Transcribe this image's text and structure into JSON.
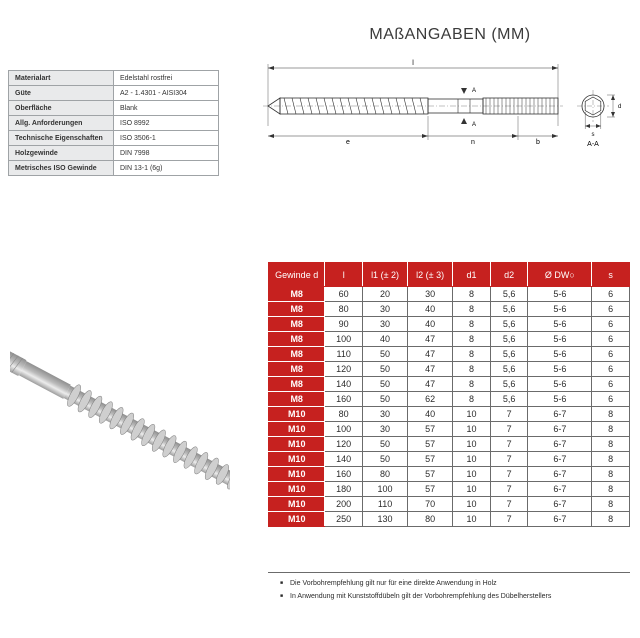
{
  "title": "MAßANGABEN (MM)",
  "spec": {
    "rows": [
      {
        "label": "Materialart",
        "value": "Edelstahl rostfrei"
      },
      {
        "label": "Güte",
        "value": "A2 - 1.4301 - AISI304"
      },
      {
        "label": "Oberfläche",
        "value": "Blank"
      },
      {
        "label": "Allg. Anforderungen",
        "value": "ISO 8992"
      },
      {
        "label": "Technische Eigenschaften",
        "value": "ISO 3506-1"
      },
      {
        "label": "Holzgewinde",
        "value": "DIN 7998"
      },
      {
        "label": "Metrisches ISO Gewinde",
        "value": "DIN 13-1 (6g)"
      }
    ]
  },
  "drawing_labels": {
    "l": "l",
    "e": "e",
    "n": "n",
    "b": "b",
    "A1": "A",
    "A2": "A",
    "section": "A-A",
    "d": "d",
    "s": "s"
  },
  "dim": {
    "headers": [
      "Gewinde d",
      "l",
      "l1 (± 2)",
      "l2 (± 3)",
      "d1",
      "d2",
      "Ø DW○",
      "s"
    ],
    "rows": [
      [
        "M8",
        "60",
        "20",
        "30",
        "8",
        "5,6",
        "5-6",
        "6"
      ],
      [
        "M8",
        "80",
        "30",
        "40",
        "8",
        "5,6",
        "5-6",
        "6"
      ],
      [
        "M8",
        "90",
        "30",
        "40",
        "8",
        "5,6",
        "5-6",
        "6"
      ],
      [
        "M8",
        "100",
        "40",
        "47",
        "8",
        "5,6",
        "5-6",
        "6"
      ],
      [
        "M8",
        "110",
        "50",
        "47",
        "8",
        "5,6",
        "5-6",
        "6"
      ],
      [
        "M8",
        "120",
        "50",
        "47",
        "8",
        "5,6",
        "5-6",
        "6"
      ],
      [
        "M8",
        "140",
        "50",
        "47",
        "8",
        "5,6",
        "5-6",
        "6"
      ],
      [
        "M8",
        "160",
        "50",
        "62",
        "8",
        "5,6",
        "5-6",
        "6"
      ],
      [
        "M10",
        "80",
        "30",
        "40",
        "10",
        "7",
        "6-7",
        "8"
      ],
      [
        "M10",
        "100",
        "30",
        "57",
        "10",
        "7",
        "6-7",
        "8"
      ],
      [
        "M10",
        "120",
        "50",
        "57",
        "10",
        "7",
        "6-7",
        "8"
      ],
      [
        "M10",
        "140",
        "50",
        "57",
        "10",
        "7",
        "6-7",
        "8"
      ],
      [
        "M10",
        "160",
        "80",
        "57",
        "10",
        "7",
        "6-7",
        "8"
      ],
      [
        "M10",
        "180",
        "100",
        "57",
        "10",
        "7",
        "6-7",
        "8"
      ],
      [
        "M10",
        "200",
        "110",
        "70",
        "10",
        "7",
        "6-7",
        "8"
      ],
      [
        "M10",
        "250",
        "130",
        "80",
        "10",
        "7",
        "6-7",
        "8"
      ]
    ]
  },
  "notes": [
    "Die Vorbohrempfehlung gilt nur für eine direkte Anwendung in Holz",
    "In Anwendung mit Kunststoffdübeln gilt der Vorbohrempfehlung des Dübelherstellers"
  ],
  "colors": {
    "red": "#c6211f",
    "grid": "#6b6b6b",
    "spec_border": "#9fa3a6",
    "spec_bg": "#e9eaeb",
    "text": "#2b2b2b",
    "steel_light": "#e6e6e6",
    "steel_mid": "#bfbfbf",
    "steel_dark": "#9c9c9c"
  }
}
